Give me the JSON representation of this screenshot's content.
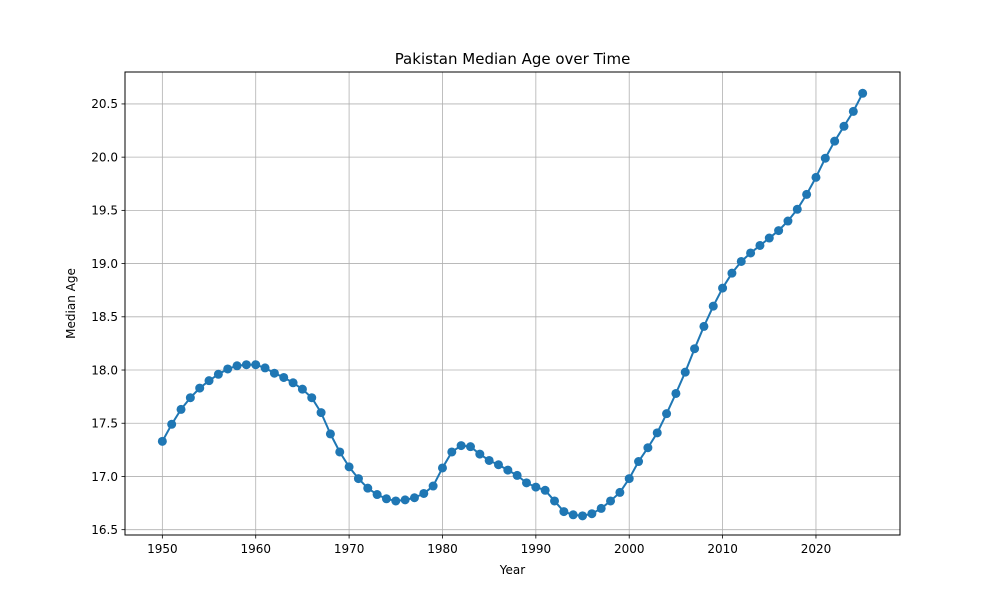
{
  "chart_data": {
    "type": "line",
    "title": "Pakistan Median Age over Time",
    "xlabel": "Year",
    "ylabel": "Median Age",
    "xlim": [
      1946,
      2029
    ],
    "ylim": [
      16.45,
      20.8
    ],
    "xticks": [
      1950,
      1960,
      1970,
      1980,
      1990,
      2000,
      2010,
      2020
    ],
    "xtick_labels": [
      "1950",
      "1960",
      "1970",
      "1980",
      "1990",
      "2000",
      "2010",
      "2020"
    ],
    "yticks": [
      16.5,
      17.0,
      17.5,
      18.0,
      18.5,
      19.0,
      19.5,
      20.0,
      20.5
    ],
    "ytick_labels": [
      "16.5",
      "17.0",
      "17.5",
      "18.0",
      "18.5",
      "19.0",
      "19.5",
      "20.0",
      "20.5"
    ],
    "grid": true,
    "color": "#1f77b4",
    "marker": "circle",
    "series": [
      {
        "x": [
          1950,
          1951,
          1952,
          1953,
          1954,
          1955,
          1956,
          1957,
          1958,
          1959,
          1960,
          1961,
          1962,
          1963,
          1964,
          1965,
          1966,
          1967,
          1968,
          1969,
          1970,
          1971,
          1972,
          1973,
          1974,
          1975,
          1976,
          1977,
          1978,
          1979,
          1980,
          1981,
          1982,
          1983,
          1984,
          1985,
          1986,
          1987,
          1988,
          1989,
          1990,
          1991,
          1992,
          1993,
          1994,
          1995,
          1996,
          1997,
          1998,
          1999,
          2000,
          2001,
          2002,
          2003,
          2004,
          2005,
          2006,
          2007,
          2008,
          2009,
          2010,
          2011,
          2012,
          2013,
          2014,
          2015,
          2016,
          2017,
          2018,
          2019,
          2020,
          2021,
          2022,
          2023,
          2024,
          2025
        ],
        "y": [
          17.33,
          17.49,
          17.63,
          17.74,
          17.83,
          17.9,
          17.96,
          18.01,
          18.04,
          18.05,
          18.05,
          18.02,
          17.97,
          17.93,
          17.88,
          17.82,
          17.74,
          17.6,
          17.4,
          17.23,
          17.09,
          16.98,
          16.89,
          16.83,
          16.79,
          16.77,
          16.78,
          16.8,
          16.84,
          16.91,
          17.08,
          17.23,
          17.29,
          17.28,
          17.21,
          17.15,
          17.11,
          17.06,
          17.01,
          16.94,
          16.9,
          16.87,
          16.77,
          16.67,
          16.64,
          16.63,
          16.65,
          16.7,
          16.77,
          16.85,
          16.98,
          17.14,
          17.27,
          17.41,
          17.59,
          17.78,
          17.98,
          18.2,
          18.41,
          18.6,
          18.77,
          18.91,
          19.02,
          19.1,
          19.17,
          19.24,
          19.31,
          19.4,
          19.51,
          19.65,
          19.81,
          19.99,
          20.15,
          20.29,
          20.43,
          20.6
        ]
      }
    ]
  }
}
